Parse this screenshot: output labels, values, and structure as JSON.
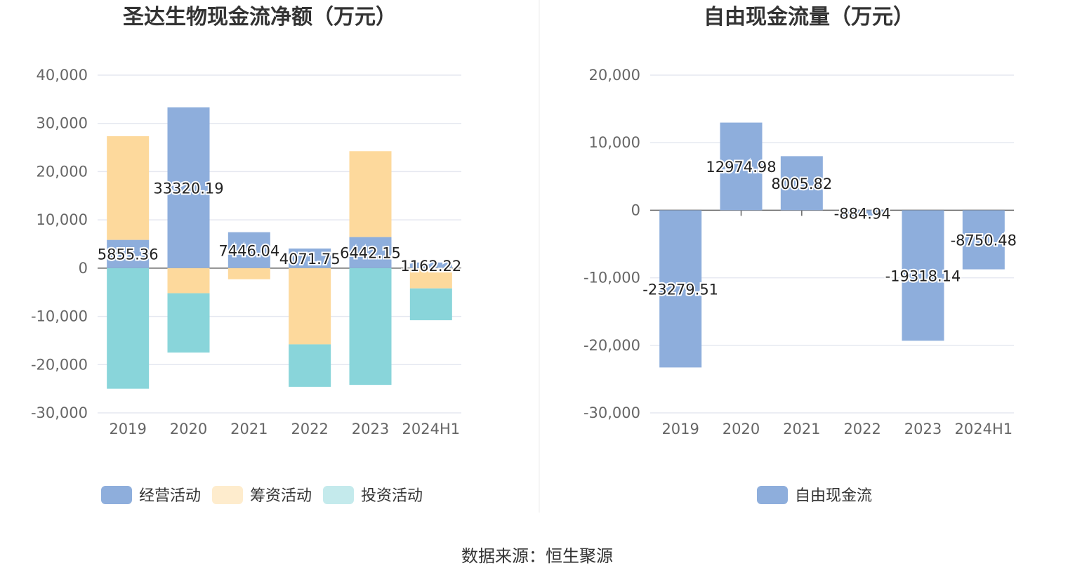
{
  "source": "数据来源：恒生聚源",
  "colors": {
    "operating": "#8eaedc",
    "financing": "#fdd99c",
    "investing": "#89d5da",
    "free": "#8eaedc",
    "grid": "#e5e8f0",
    "axis": "#666666"
  },
  "chart_data": [
    {
      "type": "bar",
      "stacked": true,
      "title": "圣达生物现金流净额（万元）",
      "categories": [
        "2019",
        "2020",
        "2021",
        "2022",
        "2023",
        "2024H1"
      ],
      "ylim": [
        -30000,
        40000
      ],
      "yticks": [
        40000,
        30000,
        20000,
        10000,
        0,
        -10000,
        -20000,
        -30000
      ],
      "ytick_labels": [
        "40,000",
        "30,000",
        "20,000",
        "10,000",
        "0",
        "-10,000",
        "-20,000",
        "-30,000"
      ],
      "grid": true,
      "legend_position": "bottom",
      "series": [
        {
          "name": "经营活动",
          "key": "operating",
          "values": [
            5855.36,
            33320.19,
            7446.04,
            4071.75,
            6442.15,
            1162.22
          ],
          "labels": [
            "5855.36",
            "33320.19",
            "7446.04",
            "4071.75",
            "6442.15",
            "1162.22"
          ]
        },
        {
          "name": "筹资活动",
          "key": "financing",
          "values": [
            21500,
            -5200,
            -2300,
            -15800,
            17800,
            -4200
          ]
        },
        {
          "name": "投资活动",
          "key": "investing",
          "values": [
            -25000,
            -12300,
            0,
            -8800,
            -24200,
            -6600
          ]
        }
      ]
    },
    {
      "type": "bar",
      "title": "自由现金流量（万元）",
      "categories": [
        "2019",
        "2020",
        "2021",
        "2022",
        "2023",
        "2024H1"
      ],
      "ylim": [
        -30000,
        20000
      ],
      "yticks": [
        20000,
        10000,
        0,
        -10000,
        -20000,
        -30000
      ],
      "ytick_labels": [
        "20,000",
        "10,000",
        "0",
        "-10,000",
        "-20,000",
        "-30,000"
      ],
      "grid": true,
      "legend_position": "bottom",
      "series": [
        {
          "name": "自由现金流",
          "key": "free",
          "values": [
            -23279.51,
            12974.98,
            8005.82,
            -884.94,
            -19318.14,
            -8750.48
          ],
          "labels": [
            "-23279.51",
            "12974.98",
            "8005.82",
            "-884.94",
            "-19318.14",
            "-8750.48"
          ]
        }
      ]
    }
  ]
}
